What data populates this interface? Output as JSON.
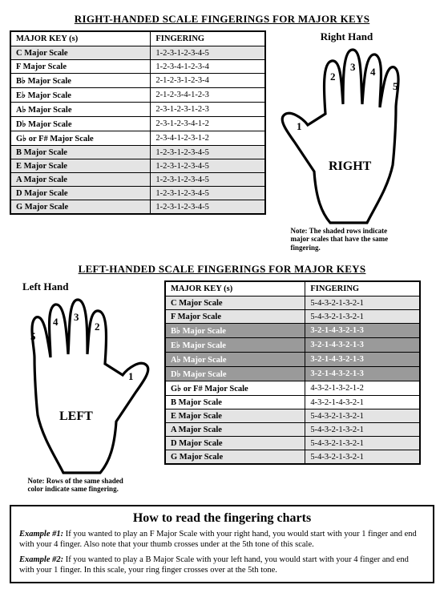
{
  "right": {
    "title": "RIGHT-HANDED SCALE FINGERINGS FOR MAJOR KEYS",
    "hand_caption": "Right Hand",
    "palm_label": "RIGHT",
    "columns": [
      "MAJOR KEY (s)",
      "FINGERING"
    ],
    "rows": [
      {
        "key": "C Major Scale",
        "fingering": "1-2-3-1-2-3-4-5",
        "shade": "light"
      },
      {
        "key": "F Major Scale",
        "fingering": "1-2-3-4-1-2-3-4",
        "shade": ""
      },
      {
        "key": "B♭ Major Scale",
        "fingering": "2-1-2-3-1-2-3-4",
        "shade": ""
      },
      {
        "key": "E♭ Major Scale",
        "fingering": "2-1-2-3-4-1-2-3",
        "shade": ""
      },
      {
        "key": "A♭ Major Scale",
        "fingering": "2-3-1-2-3-1-2-3",
        "shade": ""
      },
      {
        "key": "D♭ Major Scale",
        "fingering": "2-3-1-2-3-4-1-2",
        "shade": ""
      },
      {
        "key": "G♭ or F# Major Scale",
        "fingering": "2-3-4-1-2-3-1-2",
        "shade": ""
      },
      {
        "key": "B Major Scale",
        "fingering": "1-2-3-1-2-3-4-5",
        "shade": "light"
      },
      {
        "key": "E Major Scale",
        "fingering": "1-2-3-1-2-3-4-5",
        "shade": "light"
      },
      {
        "key": "A Major Scale",
        "fingering": "1-2-3-1-2-3-4-5",
        "shade": "light"
      },
      {
        "key": "D Major Scale",
        "fingering": "1-2-3-1-2-3-4-5",
        "shade": "light"
      },
      {
        "key": "G Major Scale",
        "fingering": "1-2-3-1-2-3-4-5",
        "shade": "light"
      }
    ],
    "note": "Note: The shaded rows indicate major scales that have the same fingering.",
    "finger_labels": [
      "1",
      "2",
      "3",
      "4",
      "5"
    ]
  },
  "left": {
    "title": "LEFT-HANDED SCALE FINGERINGS FOR MAJOR KEYS",
    "hand_caption": "Left Hand",
    "palm_label": "LEFT",
    "columns": [
      "MAJOR KEY (s)",
      "FINGERING"
    ],
    "rows": [
      {
        "key": "C Major Scale",
        "fingering": "5-4-3-2-1-3-2-1",
        "shade": "light"
      },
      {
        "key": "F Major Scale",
        "fingering": "5-4-3-2-1-3-2-1",
        "shade": "light"
      },
      {
        "key": "B♭ Major Scale",
        "fingering": "3-2-1-4-3-2-1-3",
        "shade": "dark"
      },
      {
        "key": "E♭ Major Scale",
        "fingering": "3-2-1-4-3-2-1-3",
        "shade": "dark"
      },
      {
        "key": "A♭ Major Scale",
        "fingering": "3-2-1-4-3-2-1-3",
        "shade": "dark"
      },
      {
        "key": "D♭ Major Scale",
        "fingering": "3-2-1-4-3-2-1-3",
        "shade": "dark"
      },
      {
        "key": "G♭ or F# Major Scale",
        "fingering": "4-3-2-1-3-2-1-2",
        "shade": ""
      },
      {
        "key": "B Major Scale",
        "fingering": "4-3-2-1-4-3-2-1",
        "shade": ""
      },
      {
        "key": "E Major Scale",
        "fingering": "5-4-3-2-1-3-2-1",
        "shade": "light"
      },
      {
        "key": "A Major Scale",
        "fingering": "5-4-3-2-1-3-2-1",
        "shade": "light"
      },
      {
        "key": "D Major Scale",
        "fingering": "5-4-3-2-1-3-2-1",
        "shade": "light"
      },
      {
        "key": "G Major Scale",
        "fingering": "5-4-3-2-1-3-2-1",
        "shade": "light"
      }
    ],
    "note": "Note: Rows of the same shaded color indicate same fingering.",
    "finger_labels": [
      "5",
      "4",
      "3",
      "2",
      "1"
    ]
  },
  "howto": {
    "title": "How to read the fingering charts",
    "ex1_label": "Example #1:",
    "ex1_text": " If you wanted to play an F Major Scale with your right hand, you would start with your 1 finger and end with your 4 finger. Also note that your thumb crosses under at the 5th tone of this scale.",
    "ex2_label": "Example #2:",
    "ex2_text": " If you wanted to play a B Major Scale with your left hand, you would start with your 4 finger and end with your 1 finger. In this scale, your ring finger crosses over at the 5th tone."
  }
}
